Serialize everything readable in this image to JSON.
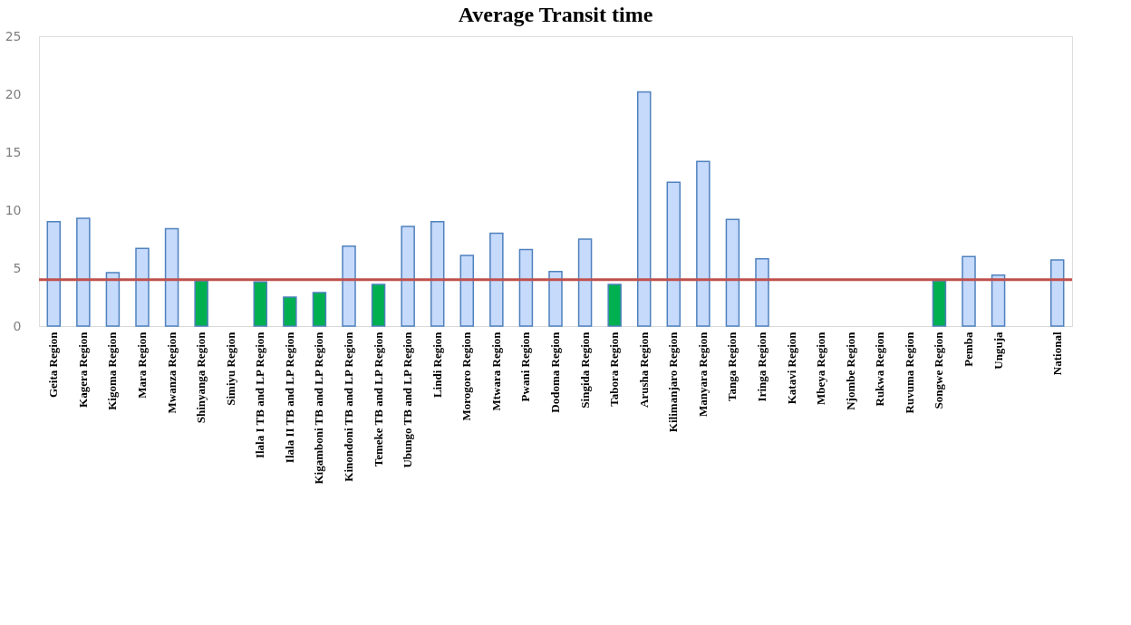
{
  "chart_data": {
    "type": "bar",
    "title": "Average  Transit  time",
    "categories": [
      "Geita Region",
      "Kagera Region",
      "Kigoma Region",
      "Mara Region",
      "Mwanza Region",
      "Shinyanga Region",
      "Simiyu Region",
      "Ilala I TB and LP Region",
      "Ilala II TB and LP Region",
      "Kigamboni TB and LP Region",
      "Kinondoni TB and LP Region",
      "Temeke TB and LP Region",
      "Ubungo TB and LP Region",
      "Lindi Region",
      "Morogoro Region",
      "Mtwara Region",
      "Pwani Region",
      "Dodoma Region",
      "Singida Region",
      "Tabora Region",
      "Arusha Region",
      "Kilimanjaro Region",
      "Manyara Region",
      "Tanga Region",
      "Iringa Region",
      "Katavi Region",
      "Mbeya Region",
      "Njombe Region",
      "Rukwa Region",
      "Ruvuma Region",
      "Songwe Region",
      "Pemba",
      "Unguja",
      null,
      "National"
    ],
    "values": [
      9.0,
      9.3,
      4.6,
      6.7,
      8.4,
      3.9,
      null,
      3.8,
      2.5,
      2.9,
      6.9,
      3.6,
      8.6,
      9.0,
      6.1,
      8.0,
      6.6,
      4.7,
      7.5,
      3.6,
      20.2,
      12.4,
      14.2,
      9.2,
      5.8,
      null,
      null,
      null,
      null,
      null,
      3.9,
      6.0,
      4.4,
      null,
      5.7
    ],
    "colors": [
      "#c6dafc",
      "#c6dafc",
      "#c6dafc",
      "#c6dafc",
      "#c6dafc",
      "#00b050",
      "#c6dafc",
      "#00b050",
      "#00b050",
      "#00b050",
      "#c6dafc",
      "#00b050",
      "#c6dafc",
      "#c6dafc",
      "#c6dafc",
      "#c6dafc",
      "#c6dafc",
      "#c6dafc",
      "#c6dafc",
      "#00b050",
      "#c6dafc",
      "#c6dafc",
      "#c6dafc",
      "#c6dafc",
      "#c6dafc",
      "#c6dafc",
      "#c6dafc",
      "#c6dafc",
      "#c6dafc",
      "#c6dafc",
      "#00b050",
      "#c6dafc",
      "#c6dafc",
      "#c6dafc",
      "#c6dafc"
    ],
    "ylim": [
      0,
      25
    ],
    "yticks": [
      0,
      5,
      10,
      15,
      20,
      25
    ],
    "grid": false,
    "ref_lines": [
      {
        "axis": "y",
        "value": 4,
        "color": "#c0504d"
      }
    ]
  }
}
